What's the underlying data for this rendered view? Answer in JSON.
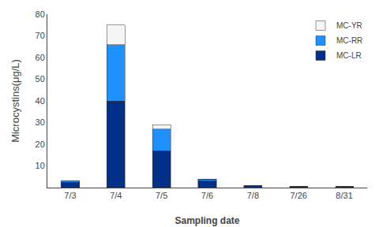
{
  "chart_data": {
    "type": "bar",
    "stacked": true,
    "categories": [
      "7/3",
      "7/4",
      "7/5",
      "7/6",
      "7/8",
      "7/26",
      "8/31"
    ],
    "series": [
      {
        "name": "MC-LR",
        "color": "#003087",
        "values": [
          2.5,
          40.0,
          17.0,
          3.2,
          1.0,
          0.5,
          0.4
        ]
      },
      {
        "name": "MC-RR",
        "color": "#1E90FF",
        "values": [
          0.5,
          26.0,
          10.0,
          0.8,
          0.0,
          0.0,
          0.0
        ]
      },
      {
        "name": "MC-YR",
        "color": "#F5F5F5",
        "values": [
          0.0,
          9.0,
          2.0,
          0.0,
          0.0,
          0.0,
          0.0
        ]
      }
    ],
    "xlabel": "Sampling date",
    "ylabel": "Microcystins(μg/L)",
    "ylim": [
      0,
      80
    ],
    "yticks": [
      10,
      20,
      30,
      40,
      50,
      60,
      70,
      80
    ],
    "grid": false,
    "legend": "upper right"
  }
}
